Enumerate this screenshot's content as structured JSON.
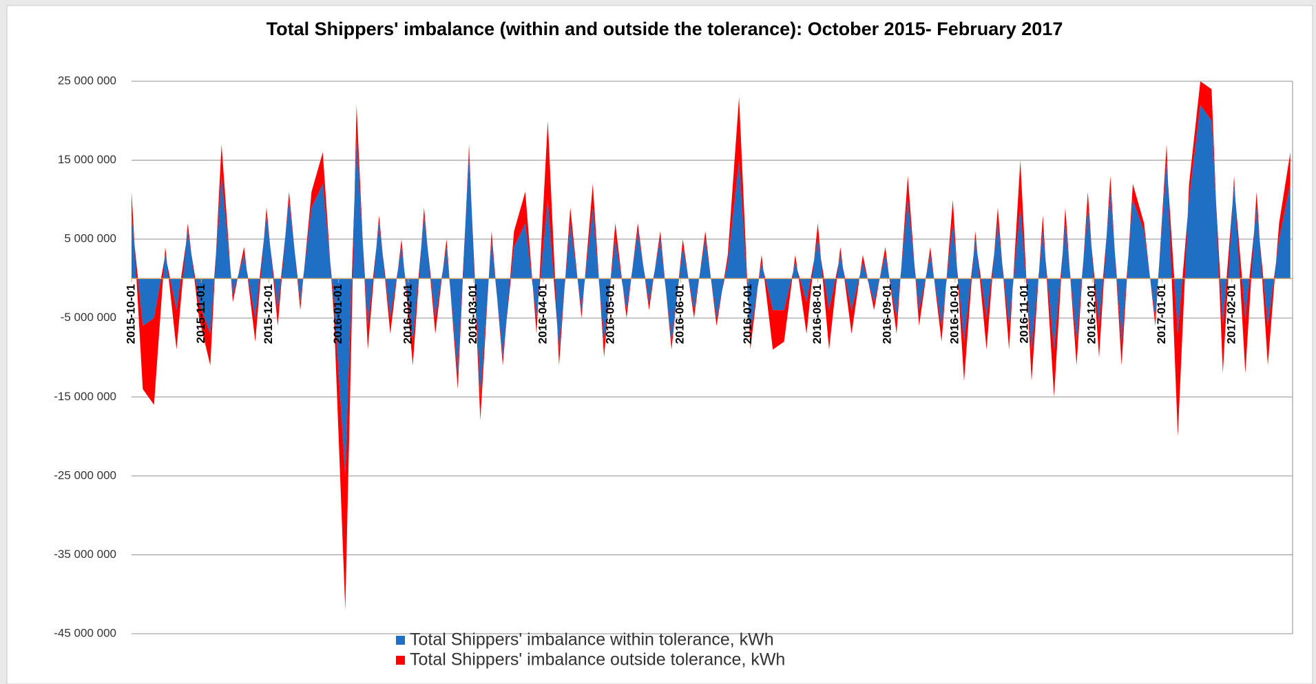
{
  "chart_data": {
    "type": "stacked-area",
    "title": "Total  Shippers' imbalance (within and outside the tolerance): October 2015- February 2017",
    "x": [
      "2015-10-01",
      "2015-10-06",
      "2015-10-11",
      "2015-10-16",
      "2015-10-21",
      "2015-10-26",
      "2015-10-31",
      "2015-11-05",
      "2015-11-10",
      "2015-11-15",
      "2015-11-20",
      "2015-11-25",
      "2015-11-30",
      "2015-12-05",
      "2015-12-10",
      "2015-12-15",
      "2015-12-20",
      "2015-12-25",
      "2015-12-30",
      "2016-01-04",
      "2016-01-09",
      "2016-01-14",
      "2016-01-19",
      "2016-01-24",
      "2016-01-29",
      "2016-02-03",
      "2016-02-08",
      "2016-02-13",
      "2016-02-18",
      "2016-02-23",
      "2016-02-28",
      "2016-03-04",
      "2016-03-09",
      "2016-03-14",
      "2016-03-19",
      "2016-03-24",
      "2016-03-29",
      "2016-04-03",
      "2016-04-08",
      "2016-04-13",
      "2016-04-18",
      "2016-04-23",
      "2016-04-28",
      "2016-05-03",
      "2016-05-08",
      "2016-05-13",
      "2016-05-18",
      "2016-05-23",
      "2016-05-28",
      "2016-06-02",
      "2016-06-07",
      "2016-06-12",
      "2016-06-17",
      "2016-06-22",
      "2016-06-27",
      "2016-07-02",
      "2016-07-07",
      "2016-07-12",
      "2016-07-17",
      "2016-07-22",
      "2016-07-27",
      "2016-08-01",
      "2016-08-06",
      "2016-08-11",
      "2016-08-16",
      "2016-08-21",
      "2016-08-26",
      "2016-08-31",
      "2016-09-05",
      "2016-09-10",
      "2016-09-15",
      "2016-09-20",
      "2016-09-25",
      "2016-09-30",
      "2016-10-05",
      "2016-10-10",
      "2016-10-15",
      "2016-10-20",
      "2016-10-25",
      "2016-10-30",
      "2016-11-04",
      "2016-11-09",
      "2016-11-14",
      "2016-11-19",
      "2016-11-24",
      "2016-11-29",
      "2016-12-04",
      "2016-12-09",
      "2016-12-14",
      "2016-12-19",
      "2016-12-24",
      "2016-12-29",
      "2017-01-03",
      "2017-01-08",
      "2017-01-13",
      "2017-01-18",
      "2017-01-23",
      "2017-01-28",
      "2017-02-02",
      "2017-02-07",
      "2017-02-12",
      "2017-02-17",
      "2017-02-22",
      "2017-02-27"
    ],
    "series": [
      {
        "name": "Total Shippers' imbalance within tolerance, kWh",
        "color": "#1f6fc4",
        "values": [
          8000000,
          -6000000,
          -5000000,
          3000000,
          -4000000,
          6000000,
          -3000000,
          -7000000,
          13000000,
          -2000000,
          3000000,
          -5000000,
          8000000,
          -4000000,
          10000000,
          -3000000,
          9000000,
          12000000,
          -3000000,
          -25000000,
          18000000,
          -6000000,
          7000000,
          -5000000,
          4000000,
          -8000000,
          8000000,
          -5000000,
          4000000,
          -12000000,
          16000000,
          -15000000,
          5000000,
          -10000000,
          4000000,
          7000000,
          -5000000,
          10000000,
          -9000000,
          7000000,
          -4000000,
          9000000,
          -8000000,
          5000000,
          -4000000,
          6000000,
          -3000000,
          5000000,
          -8000000,
          4000000,
          -4000000,
          5000000,
          -5000000,
          2000000,
          15000000,
          -7000000,
          2000000,
          -4000000,
          -4000000,
          2000000,
          -3000000,
          5000000,
          -4000000,
          3000000,
          -4000000,
          2000000,
          -3000000,
          3000000,
          -5000000,
          10000000,
          -4000000,
          3000000,
          -6000000,
          7000000,
          -8000000,
          5000000,
          -5000000,
          7000000,
          -6000000,
          9000000,
          -9000000,
          6000000,
          -9000000,
          7000000,
          -8000000,
          9000000,
          -6000000,
          11000000,
          -8000000,
          10000000,
          6000000,
          -5000000,
          15000000,
          -7000000,
          10000000,
          22000000,
          20000000,
          -6000000,
          12000000,
          -5000000,
          9000000,
          -6000000,
          5000000,
          12000000
        ]
      },
      {
        "name": "Total Shippers' imbalance outside tolerance, kWh",
        "color": "#ff0000",
        "values": [
          3000000,
          -8000000,
          -11000000,
          1000000,
          -5000000,
          1000000,
          -2000000,
          -4000000,
          4000000,
          -1000000,
          1000000,
          -3000000,
          1000000,
          -2000000,
          1000000,
          -1000000,
          2000000,
          4000000,
          -2000000,
          -17000000,
          4000000,
          -3000000,
          1000000,
          -2000000,
          1000000,
          -3000000,
          1000000,
          -2000000,
          1000000,
          -2000000,
          1000000,
          -3000000,
          1000000,
          -1000000,
          2000000,
          4000000,
          -2000000,
          10000000,
          -2000000,
          2000000,
          -1000000,
          3000000,
          -2000000,
          2000000,
          -1000000,
          1000000,
          -1000000,
          1000000,
          -1000000,
          1000000,
          -1000000,
          1000000,
          -1000000,
          1000000,
          8000000,
          -2000000,
          1000000,
          -5000000,
          -4000000,
          1000000,
          -4000000,
          2000000,
          -5000000,
          1000000,
          -3000000,
          1000000,
          -1000000,
          1000000,
          -2000000,
          3000000,
          -2000000,
          1000000,
          -2000000,
          3000000,
          -5000000,
          1000000,
          -4000000,
          2000000,
          -3000000,
          6000000,
          -4000000,
          2000000,
          -6000000,
          2000000,
          -3000000,
          2000000,
          -4000000,
          2000000,
          -3000000,
          2000000,
          1000000,
          -1000000,
          2000000,
          -13000000,
          2000000,
          3000000,
          4000000,
          -6000000,
          1000000,
          -7000000,
          2000000,
          -5000000,
          2000000,
          4000000
        ]
      }
    ],
    "xlim": [
      "2015-10-01",
      "2017-02-28"
    ],
    "xticks": [
      "2015-10-01",
      "2015-11-01",
      "2015-12-01",
      "2016-01-01",
      "2016-02-01",
      "2016-03-01",
      "2016-04-01",
      "2016-05-01",
      "2016-06-01",
      "2016-07-01",
      "2016-08-01",
      "2016-09-01",
      "2016-10-01",
      "2016-11-01",
      "2016-12-01",
      "2017-01-01",
      "2017-02-01"
    ],
    "ylim": [
      -45000000,
      25000000
    ],
    "yticks": [
      {
        "value": 25000000,
        "label": "25 000 000"
      },
      {
        "value": 15000000,
        "label": "15 000 000"
      },
      {
        "value": 5000000,
        "label": "5 000 000"
      },
      {
        "value": -5000000,
        "label": "-5 000 000"
      },
      {
        "value": -15000000,
        "label": "-15 000 000"
      },
      {
        "value": -25000000,
        "label": "-25 000 000"
      },
      {
        "value": -35000000,
        "label": "-35 000 000"
      },
      {
        "value": -45000000,
        "label": "-45 000 000"
      }
    ],
    "grid": true
  }
}
